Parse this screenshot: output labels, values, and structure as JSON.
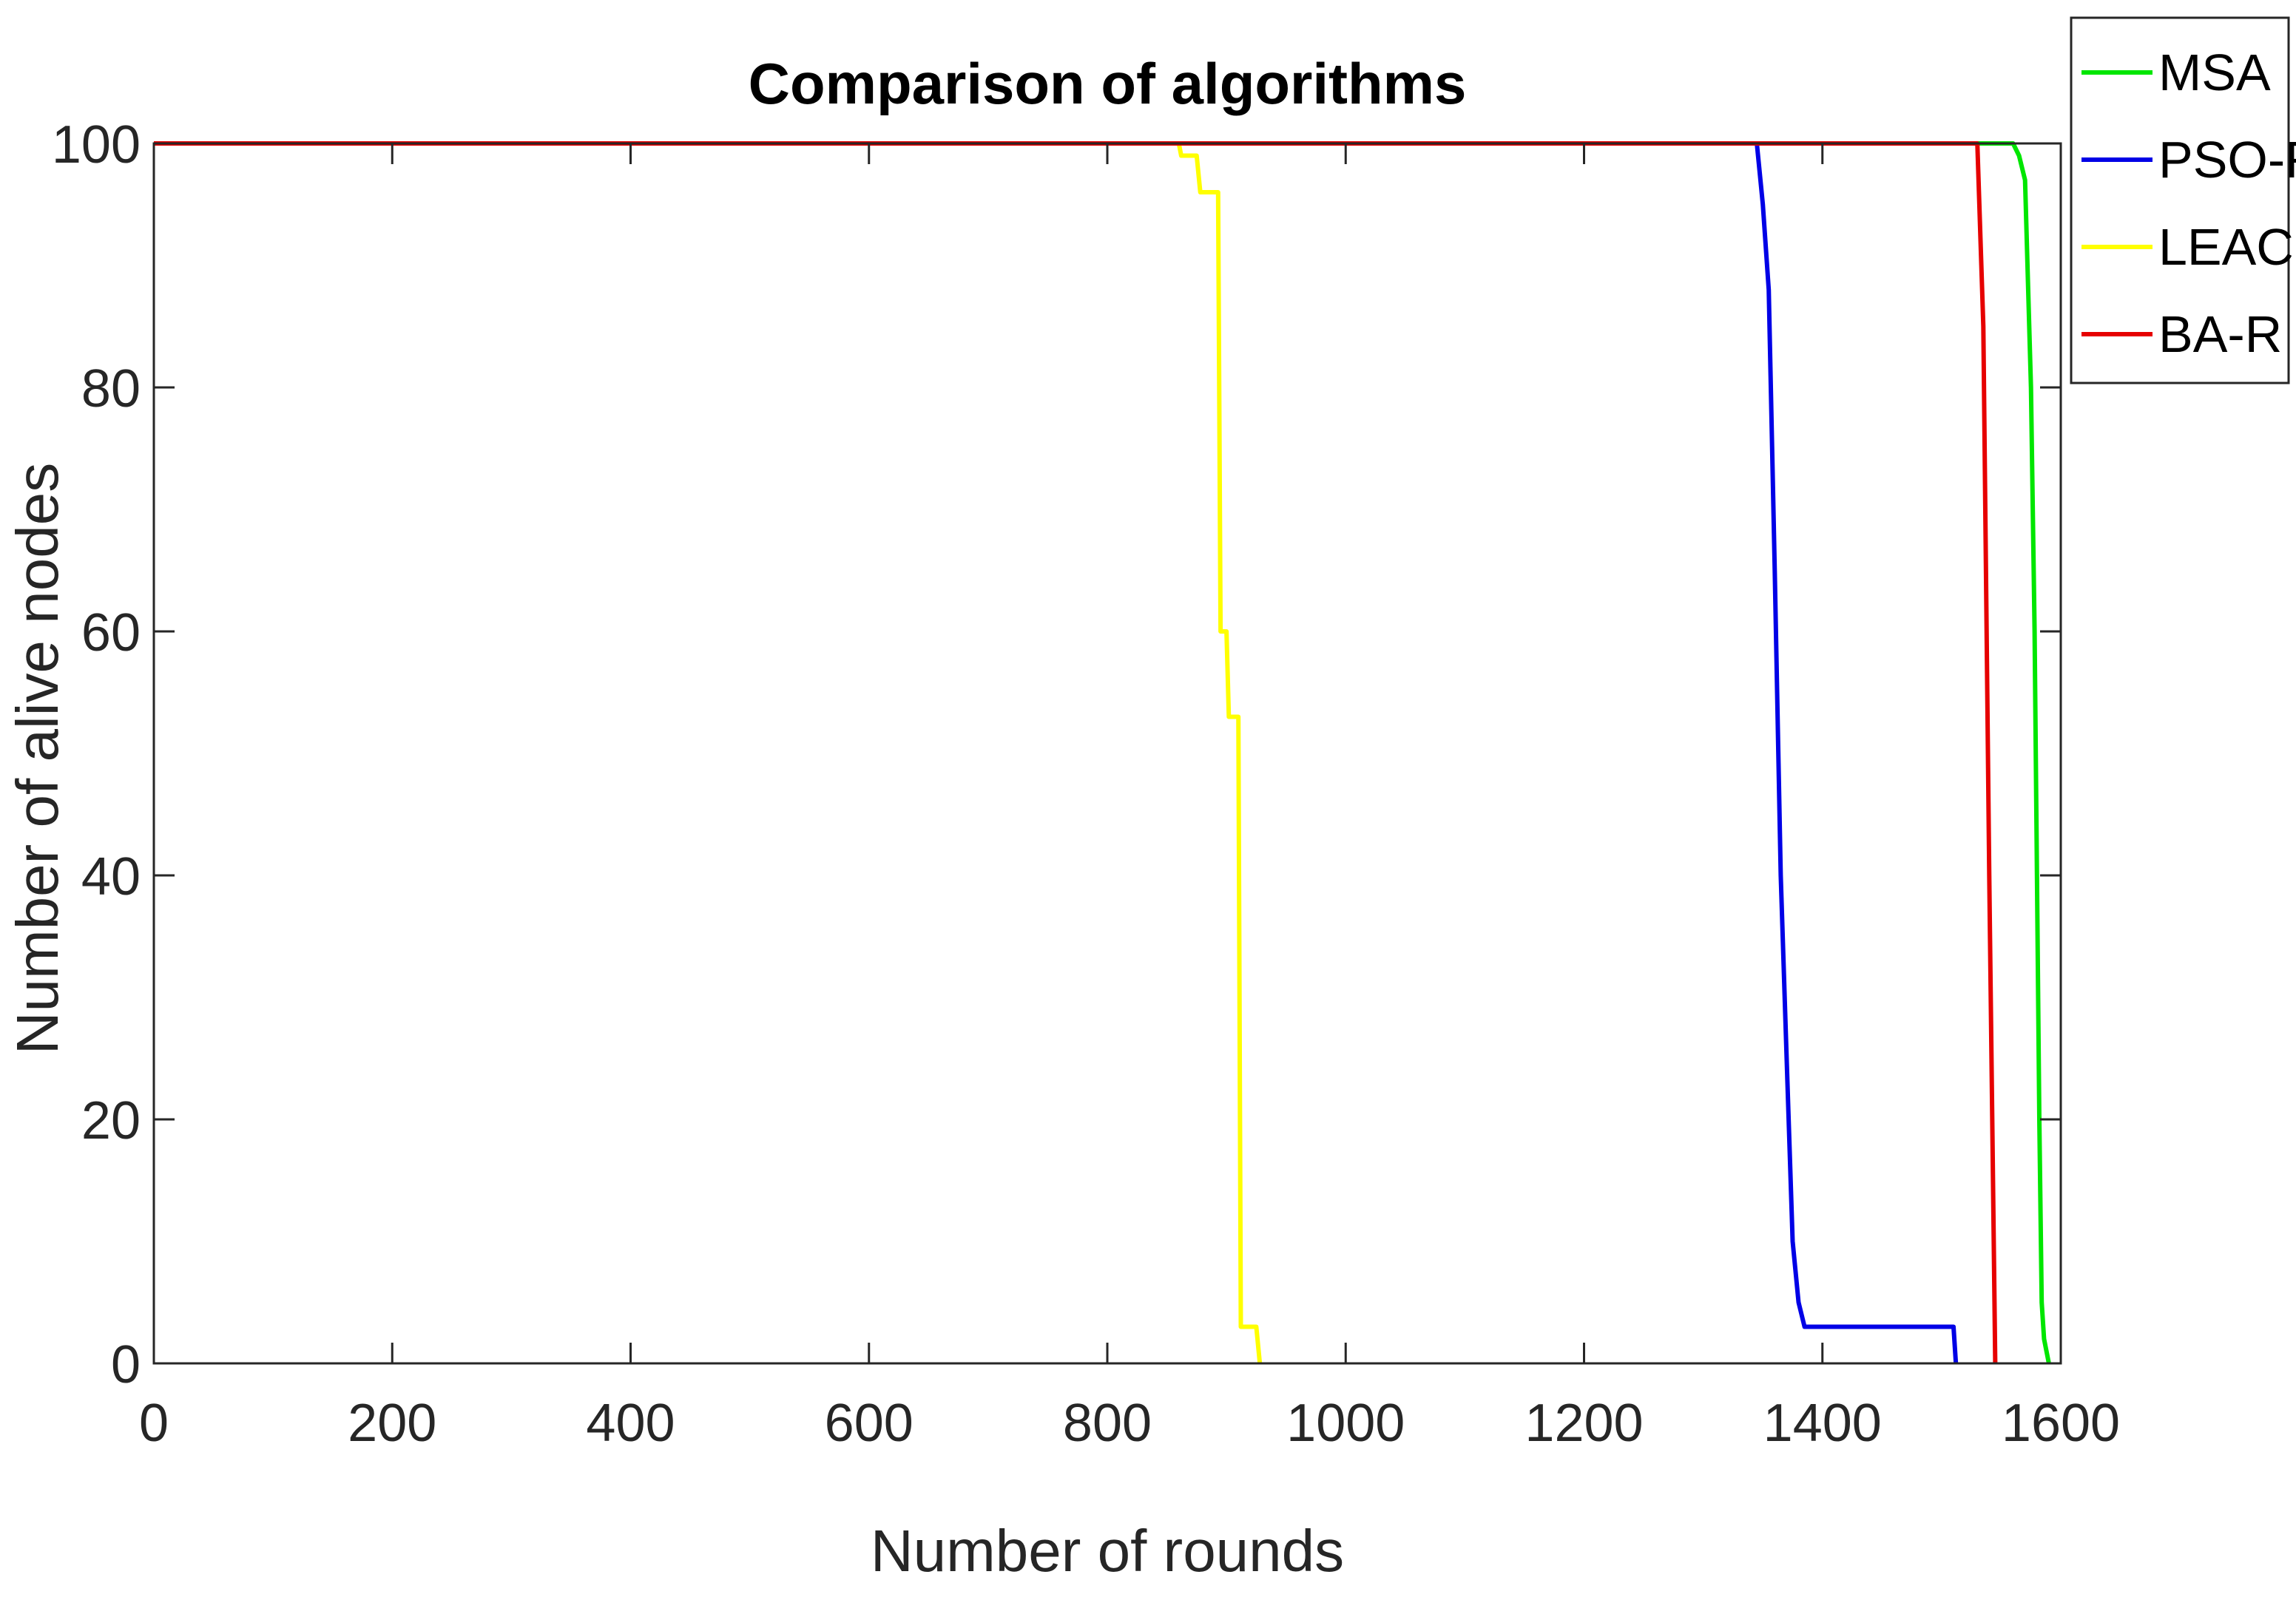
{
  "chart_data": {
    "type": "line",
    "title": "Comparison of algorithms",
    "xlabel": "Number of rounds",
    "ylabel": "Number of alive nodes",
    "xlim": [
      0,
      1600
    ],
    "ylim": [
      0,
      100
    ],
    "x_ticks": [
      0,
      200,
      400,
      600,
      800,
      1000,
      1200,
      1400,
      1600
    ],
    "y_ticks": [
      0,
      20,
      40,
      60,
      80,
      100
    ],
    "grid": false,
    "legend_position": "outside-top-right",
    "series": [
      {
        "name": "MSA",
        "color": "#00e600",
        "points": [
          [
            0,
            100
          ],
          [
            1560,
            100
          ],
          [
            1565,
            99
          ],
          [
            1570,
            97
          ],
          [
            1575,
            80
          ],
          [
            1578,
            60
          ],
          [
            1580,
            40
          ],
          [
            1582,
            20
          ],
          [
            1584,
            5
          ],
          [
            1586,
            2
          ],
          [
            1590,
            0
          ]
        ]
      },
      {
        "name": "PSO-R",
        "color": "#0000e6",
        "points": [
          [
            0,
            100
          ],
          [
            1345,
            100
          ],
          [
            1350,
            95
          ],
          [
            1355,
            88
          ],
          [
            1360,
            65
          ],
          [
            1365,
            40
          ],
          [
            1370,
            25
          ],
          [
            1375,
            10
          ],
          [
            1380,
            5
          ],
          [
            1385,
            3
          ],
          [
            1510,
            3
          ],
          [
            1512,
            0
          ]
        ]
      },
      {
        "name": "LEACH",
        "color": "#ffff00",
        "points": [
          [
            0,
            100
          ],
          [
            860,
            100
          ],
          [
            862,
            99
          ],
          [
            875,
            99
          ],
          [
            878,
            96
          ],
          [
            893,
            96
          ],
          [
            895,
            60
          ],
          [
            900,
            60
          ],
          [
            902,
            53
          ],
          [
            910,
            53
          ],
          [
            912,
            3
          ],
          [
            925,
            3
          ],
          [
            928,
            0
          ]
        ]
      },
      {
        "name": "BA-R",
        "color": "#e60000",
        "points": [
          [
            0,
            100
          ],
          [
            1530,
            100
          ],
          [
            1535,
            85
          ],
          [
            1540,
            40
          ],
          [
            1545,
            0
          ]
        ]
      }
    ]
  }
}
